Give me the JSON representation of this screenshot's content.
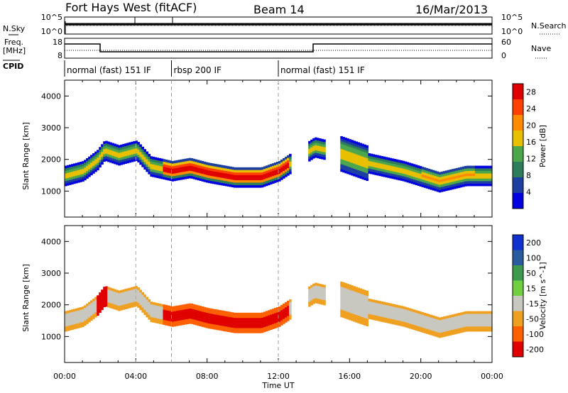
{
  "header": {
    "station": "Fort Hays West (fitACF)",
    "beam": "Beam 14",
    "date": "16/Mar/2013"
  },
  "top_panels": {
    "noise": {
      "left_label": "N.Sky",
      "right_label": "N.Search",
      "left_ticks": [
        "10^5",
        "10^0"
      ],
      "right_ticks": [
        "10^5",
        "10^0"
      ]
    },
    "freq": {
      "left_label": "Freq.",
      "left_unit": "[MHz]",
      "right_label": "Nave",
      "left_ticks": [
        "18",
        "8"
      ],
      "right_ticks": [
        "60",
        "0"
      ]
    },
    "cpid": {
      "label": "CPID",
      "segments": [
        {
          "label": "normal (fast) 151 IF",
          "start_hour": 0,
          "end_hour": 6
        },
        {
          "label": "rbsp 200 IF",
          "start_hour": 6,
          "end_hour": 12
        },
        {
          "label": "normal (fast) 151 IF",
          "start_hour": 12,
          "end_hour": 24
        }
      ]
    }
  },
  "chart_data": [
    {
      "type": "heatmap",
      "title": "",
      "xlabel": "Time UT",
      "ylabel": "Slant Range [km]",
      "x_ticks": [
        "00:00",
        "04:00",
        "08:00",
        "12:00",
        "16:00",
        "20:00",
        "00:00"
      ],
      "xlim_hours": [
        0,
        24
      ],
      "y_ticks": [
        1000,
        2000,
        3000,
        4000
      ],
      "ylim_km": [
        180,
        4500
      ],
      "colorbar": {
        "label": "Power [dB]",
        "ticks": [
          4,
          8,
          12,
          16,
          20,
          24,
          28
        ],
        "range": [
          0,
          30
        ],
        "colors": [
          "#0000e0",
          "#1d3fa0",
          "#2e7d5a",
          "#4ca64c",
          "#e8c000",
          "#ff8c00",
          "#ff4000",
          "#e00000"
        ]
      },
      "echo_band_center_km": [
        {
          "hour": 0.0,
          "km": 1500
        },
        {
          "hour": 1.0,
          "km": 1650
        },
        {
          "hour": 1.8,
          "km": 2000
        },
        {
          "hour": 2.2,
          "km": 2300
        },
        {
          "hour": 3.0,
          "km": 2150
        },
        {
          "hour": 4.0,
          "km": 2300
        },
        {
          "hour": 4.8,
          "km": 1800
        },
        {
          "hour": 6.0,
          "km": 1650
        },
        {
          "hour": 7.0,
          "km": 1750
        },
        {
          "hour": 8.0,
          "km": 1600
        },
        {
          "hour": 9.5,
          "km": 1450
        },
        {
          "hour": 11.0,
          "km": 1450
        },
        {
          "hour": 12.0,
          "km": 1650
        },
        {
          "hour": 14.0,
          "km": 2400
        },
        {
          "hour": 15.5,
          "km": 2200
        },
        {
          "hour": 17.0,
          "km": 1900
        },
        {
          "hour": 19.0,
          "km": 1650
        },
        {
          "hour": 21.0,
          "km": 1300
        },
        {
          "hour": 22.5,
          "km": 1500
        },
        {
          "hour": 24.0,
          "km": 1500
        }
      ]
    },
    {
      "type": "heatmap",
      "title": "",
      "xlabel": "Time UT",
      "ylabel": "Slant Range [km]",
      "x_ticks": [
        "00:00",
        "04:00",
        "08:00",
        "12:00",
        "16:00",
        "20:00",
        "00:00"
      ],
      "xlim_hours": [
        0,
        24
      ],
      "y_ticks": [
        1000,
        2000,
        3000,
        4000
      ],
      "ylim_km": [
        180,
        4500
      ],
      "colorbar": {
        "label": "Velocity [m s^-1]",
        "ticks": [
          200,
          100,
          50,
          15,
          -15,
          -50,
          -100,
          -200
        ],
        "colors": [
          "#1030d0",
          "#2a5aa0",
          "#3c9a4c",
          "#70d040",
          "#c8c8c0",
          "#f0a020",
          "#ff6000",
          "#e00000"
        ]
      }
    }
  ]
}
